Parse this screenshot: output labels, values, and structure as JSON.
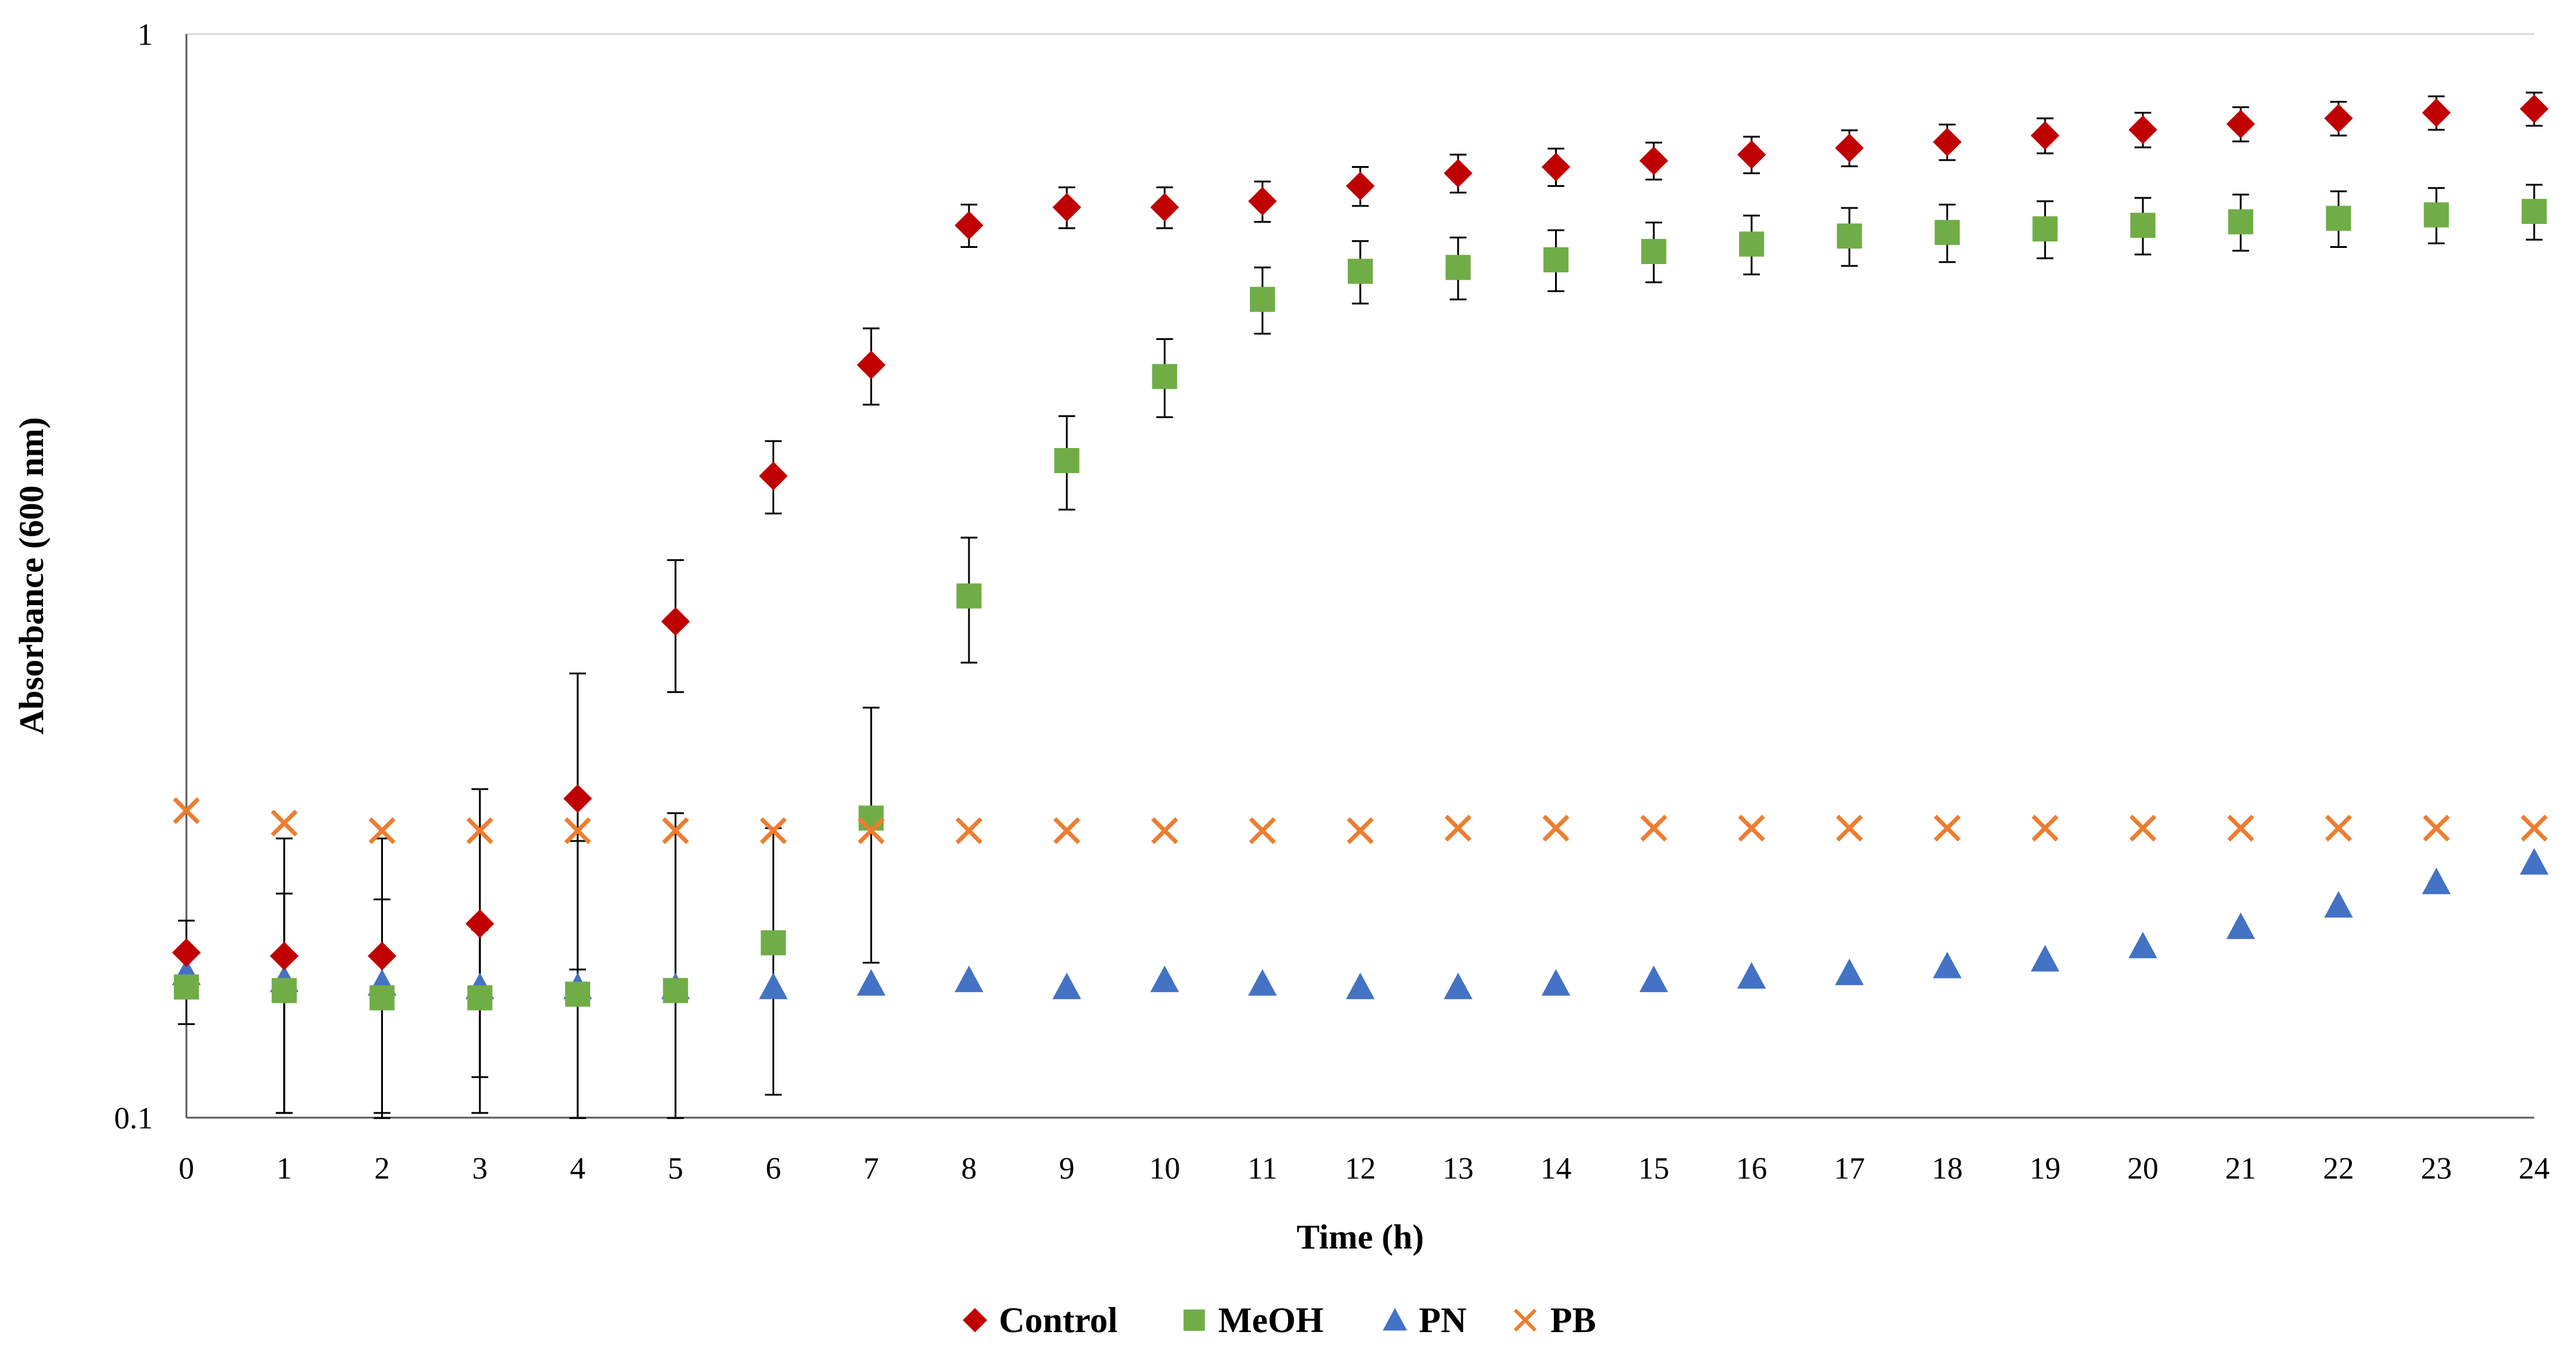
{
  "chart_data": {
    "type": "scatter",
    "title": "",
    "xlabel": "Time (h)",
    "ylabel": "Absorbance (600 nm)",
    "yscale": "log",
    "ylim": [
      0.1,
      1
    ],
    "xlim": [
      0,
      24
    ],
    "grid": "horizontal line at y = 1 only",
    "legend_position": "bottom-center",
    "x_ticks": [
      "0",
      "1",
      "2",
      "3",
      "4",
      "5",
      "6",
      "7",
      "8",
      "9",
      "10",
      "11",
      "12",
      "13",
      "14",
      "15",
      "16",
      "17",
      "18",
      "19",
      "20",
      "21",
      "22",
      "23",
      "24"
    ],
    "y_ticks": [
      "0.1",
      "1"
    ],
    "x": [
      0,
      1,
      2,
      3,
      4,
      5,
      6,
      7,
      8,
      9,
      10,
      11,
      12,
      13,
      14,
      15,
      16,
      17,
      18,
      19,
      20,
      21,
      22,
      23,
      24
    ],
    "series": [
      {
        "name": "Control",
        "marker": "diamond",
        "color": "#C00000",
        "values": [
          0.142,
          0.141,
          0.141,
          0.151,
          0.197,
          0.287,
          0.391,
          0.495,
          0.666,
          0.692,
          0.692,
          0.701,
          0.724,
          0.744,
          0.754,
          0.764,
          0.774,
          0.785,
          0.795,
          0.806,
          0.816,
          0.826,
          0.836,
          0.846,
          0.853
        ],
        "error": [
          0.01,
          0.04,
          0.04,
          0.05,
          0.06,
          0.04,
          0.03,
          0.04,
          0.03,
          0.03,
          0.03,
          0.03,
          0.03,
          0.03,
          0.03,
          0.03,
          0.03,
          0.03,
          0.03,
          0.03,
          0.03,
          0.03,
          0.03,
          0.03,
          0.03
        ]
      },
      {
        "name": "MeOH",
        "marker": "square",
        "color": "#70AD47",
        "values": [
          0.132,
          0.131,
          0.129,
          0.129,
          0.13,
          0.131,
          0.145,
          0.189,
          0.303,
          0.404,
          0.483,
          0.569,
          0.604,
          0.609,
          0.619,
          0.63,
          0.64,
          0.651,
          0.656,
          0.661,
          0.666,
          0.671,
          0.676,
          0.681,
          0.686
        ],
        "error": [
          0.01,
          0.03,
          0.03,
          0.02,
          0.05,
          0.06,
          0.04,
          0.05,
          0.04,
          0.04,
          0.04,
          0.04,
          0.04,
          0.04,
          0.04,
          0.04,
          0.04,
          0.04,
          0.04,
          0.04,
          0.04,
          0.04,
          0.04,
          0.04,
          0.04
        ]
      },
      {
        "name": "PN",
        "marker": "triangle",
        "color": "#4472C4",
        "values": [
          0.136,
          0.134,
          0.133,
          0.132,
          0.132,
          0.132,
          0.132,
          0.133,
          0.134,
          0.132,
          0.134,
          0.133,
          0.132,
          0.132,
          0.133,
          0.134,
          0.135,
          0.136,
          0.138,
          0.14,
          0.144,
          0.15,
          0.157,
          0.165,
          0.172
        ],
        "error": [
          0,
          0,
          0,
          0,
          0,
          0,
          0,
          0,
          0,
          0,
          0,
          0,
          0,
          0,
          0,
          0,
          0,
          0,
          0,
          0,
          0,
          0,
          0,
          0,
          0
        ]
      },
      {
        "name": "PB",
        "marker": "x",
        "color": "#ED7D31",
        "values": [
          0.192,
          0.187,
          0.184,
          0.184,
          0.184,
          0.184,
          0.184,
          0.184,
          0.184,
          0.184,
          0.184,
          0.184,
          0.184,
          0.185,
          0.185,
          0.185,
          0.185,
          0.185,
          0.185,
          0.185,
          0.185,
          0.185,
          0.185,
          0.185,
          0.185
        ],
        "error": [
          0,
          0,
          0,
          0,
          0,
          0,
          0,
          0,
          0,
          0,
          0,
          0,
          0,
          0,
          0,
          0,
          0,
          0,
          0,
          0,
          0,
          0,
          0,
          0,
          0
        ]
      }
    ]
  }
}
